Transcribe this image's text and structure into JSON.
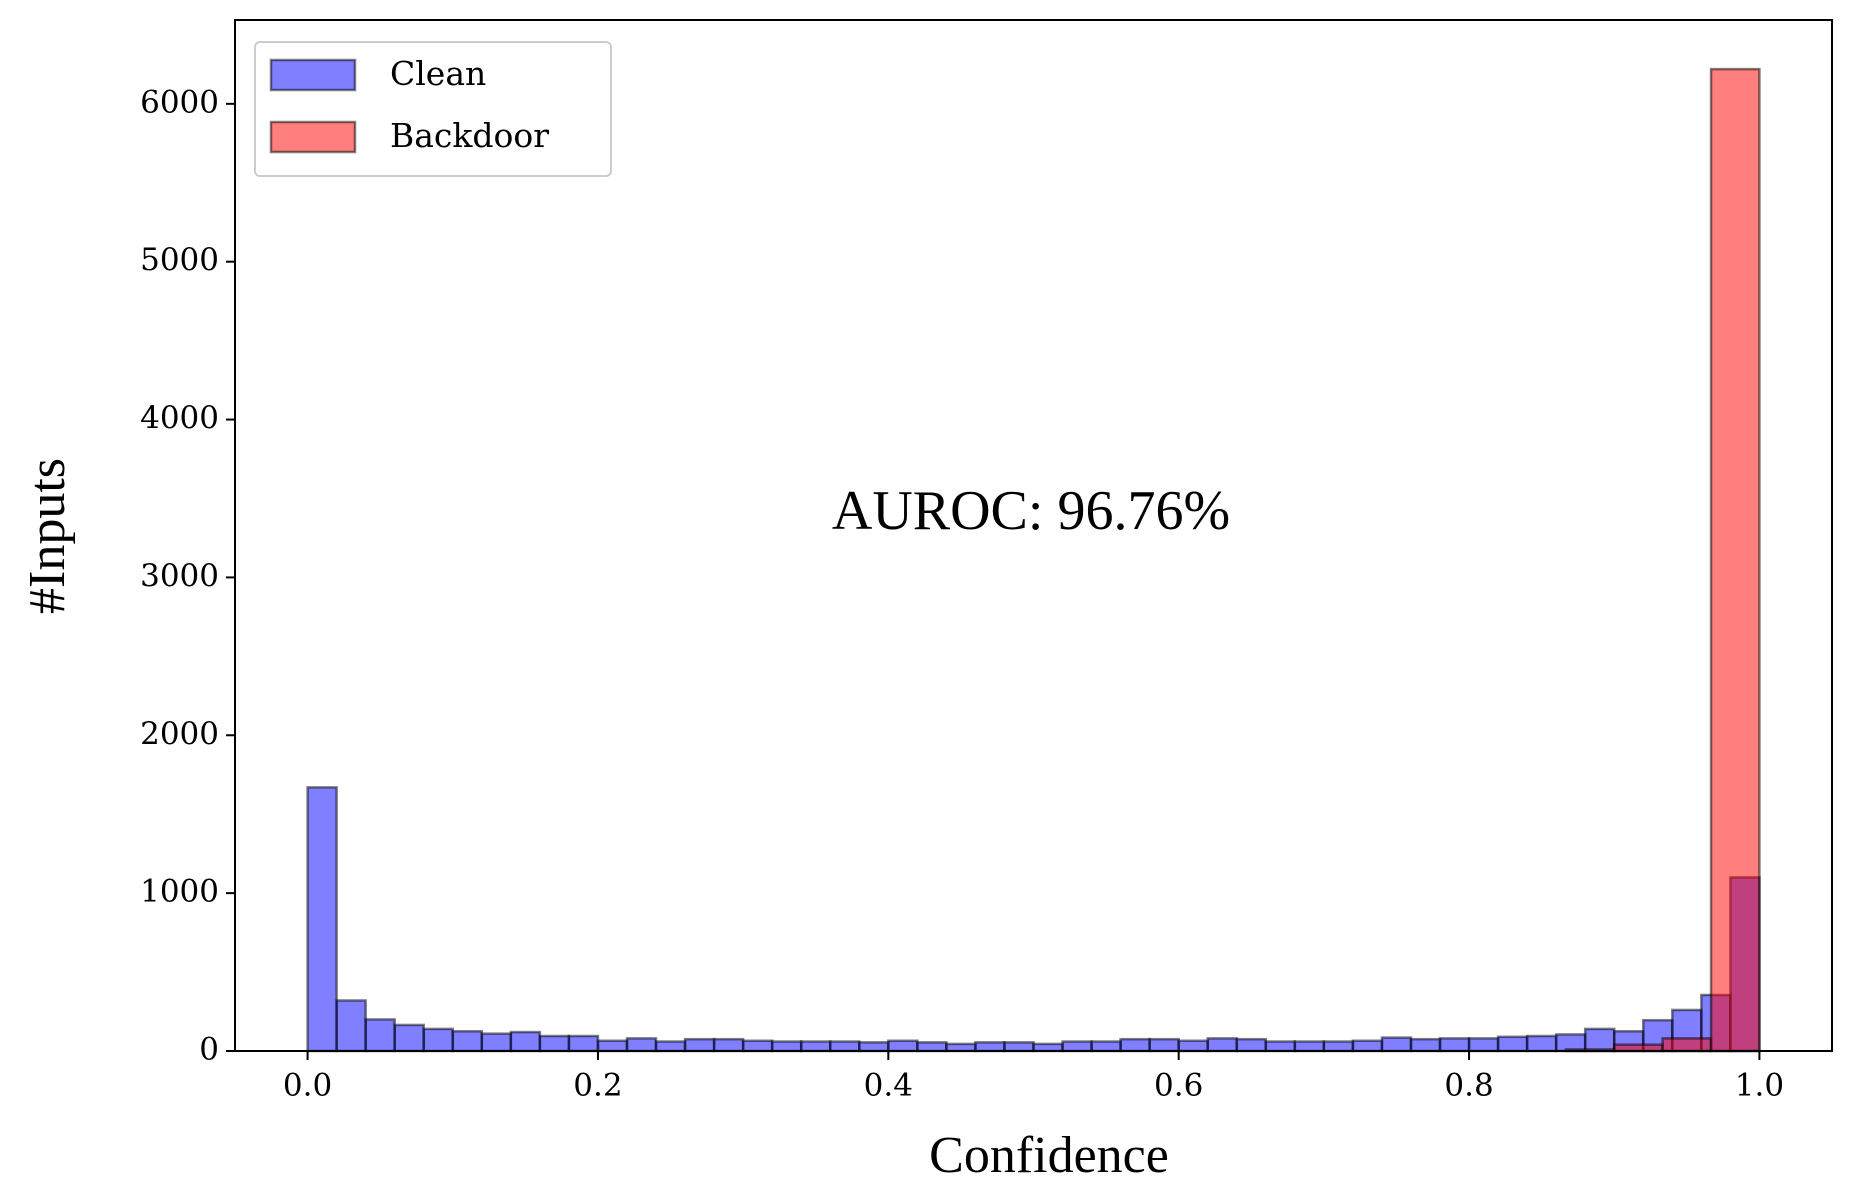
{
  "chart_data": {
    "type": "histogram",
    "xlabel": "Confidence",
    "ylabel": "#Inputs",
    "annotation": "AUROC: 96.76%",
    "xlim": [
      -0.05,
      1.05
    ],
    "ylim": [
      0,
      6531
    ],
    "xticks": [
      {
        "value": 0,
        "label": "0.0"
      },
      0.2,
      0.4,
      0.6,
      0.8,
      {
        "value": 1,
        "label": "1.0"
      }
    ],
    "yticks": [
      0,
      1000,
      2000,
      3000,
      4000,
      5000,
      6000
    ],
    "legend": "upper left",
    "series": [
      {
        "name": "Clean",
        "color": "#0000ff",
        "bins": [
          0,
          0.02,
          0.04,
          0.06,
          0.08,
          0.1,
          0.12,
          0.14,
          0.16,
          0.18,
          0.2,
          0.22,
          0.24,
          0.26,
          0.28,
          0.3,
          0.32,
          0.34,
          0.36,
          0.38,
          0.4,
          0.42,
          0.44,
          0.46,
          0.48,
          0.5,
          0.52,
          0.54,
          0.56,
          0.58,
          0.6,
          0.62,
          0.64,
          0.66,
          0.68,
          0.7,
          0.72,
          0.74,
          0.76,
          0.78,
          0.8,
          0.82,
          0.84,
          0.86,
          0.88,
          0.9,
          0.92,
          0.94,
          0.96,
          0.98,
          1
        ],
        "values": [
          1670,
          320,
          200,
          165,
          140,
          125,
          110,
          120,
          95,
          95,
          65,
          80,
          60,
          75,
          75,
          65,
          60,
          60,
          60,
          55,
          65,
          55,
          45,
          55,
          55,
          45,
          60,
          60,
          75,
          75,
          65,
          80,
          75,
          60,
          60,
          60,
          65,
          85,
          75,
          80,
          80,
          90,
          95,
          105,
          140,
          125,
          195,
          260,
          355,
          1100
        ]
      },
      {
        "name": "Backdoor",
        "color": "#ff0000",
        "bins": [
          0,
          0.0333,
          0.0667,
          0.1,
          0.1333,
          0.1667,
          0.2,
          0.2333,
          0.2667,
          0.3,
          0.3333,
          0.3667,
          0.4,
          0.4333,
          0.4667,
          0.5,
          0.5333,
          0.5667,
          0.6,
          0.6333,
          0.6667,
          0.7,
          0.7333,
          0.7667,
          0.8,
          0.8333,
          0.8667,
          0.9,
          0.9333,
          0.9667,
          1
        ],
        "values": [
          0,
          0,
          0,
          0,
          0,
          0,
          0,
          0,
          0,
          0,
          0,
          0,
          0,
          0,
          0,
          0,
          0,
          0,
          0,
          0,
          0,
          0,
          0,
          0,
          0,
          0,
          10,
          40,
          80,
          6220
        ]
      }
    ]
  }
}
